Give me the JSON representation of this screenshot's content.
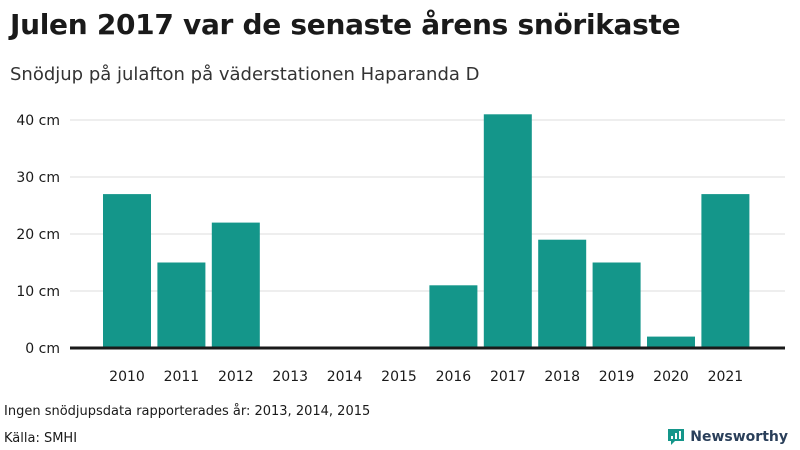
{
  "header": {
    "title": "Julen 2017 var de senaste årens snörikaste",
    "subtitle": "Snödjup på julafton på väderstationen Haparanda D"
  },
  "footer": {
    "note": "Ingen snödjupsdata rapporterades år: 2013, 2014, 2015",
    "source": "Källa: SMHI",
    "brand": "Newsworthy",
    "brand_icon": "newsworthy-logo-icon"
  },
  "colors": {
    "bar": "#14968a",
    "grid": "#dcdcdc",
    "baseline": "#1a1a1a",
    "brand": "#14968a"
  },
  "chart_data": {
    "type": "bar",
    "categories": [
      "2010",
      "2011",
      "2012",
      "2013",
      "2014",
      "2015",
      "2016",
      "2017",
      "2018",
      "2019",
      "2020",
      "2021"
    ],
    "values": [
      27,
      15,
      22,
      null,
      null,
      null,
      11,
      41,
      19,
      15,
      2,
      27
    ],
    "title": "Julen 2017 var de senaste årens snörikaste",
    "subtitle": "Snödjup på julafton på väderstationen Haparanda D",
    "xlabel": "",
    "ylabel": "",
    "ylim": [
      0,
      40
    ],
    "yticks": [
      0,
      10,
      20,
      30,
      40
    ],
    "ytick_labels": [
      "0 cm",
      "10 cm",
      "20 cm",
      "30 cm",
      "40 cm"
    ],
    "grid": true,
    "legend": false
  }
}
